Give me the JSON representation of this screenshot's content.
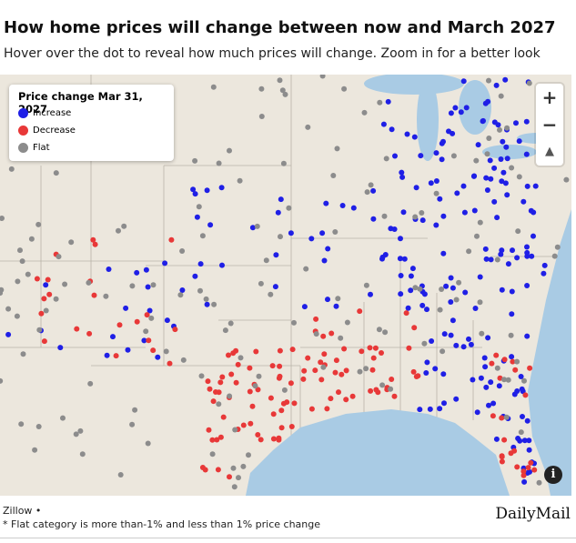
{
  "header": {
    "title": "How home prices will change between now and March 2027",
    "subtitle": "Hover over the dot to reveal how much prices will change. Zoom in for a better look"
  },
  "legend": {
    "title": "Price change Mar 31, 2027",
    "items": [
      {
        "label": "Increase",
        "color": "#1f1fe6"
      },
      {
        "label": "Decrease",
        "color": "#e83838"
      },
      {
        "label": "Flat",
        "color": "#8c8c8c"
      }
    ]
  },
  "controls": {
    "zoom_in": "+",
    "zoom_out": "−",
    "reset": "▲",
    "info": "i"
  },
  "footer": {
    "source": "Zillow •",
    "note": "* Flat category is more than-1% and less than 1% price change",
    "logo": "DailyMail"
  }
}
